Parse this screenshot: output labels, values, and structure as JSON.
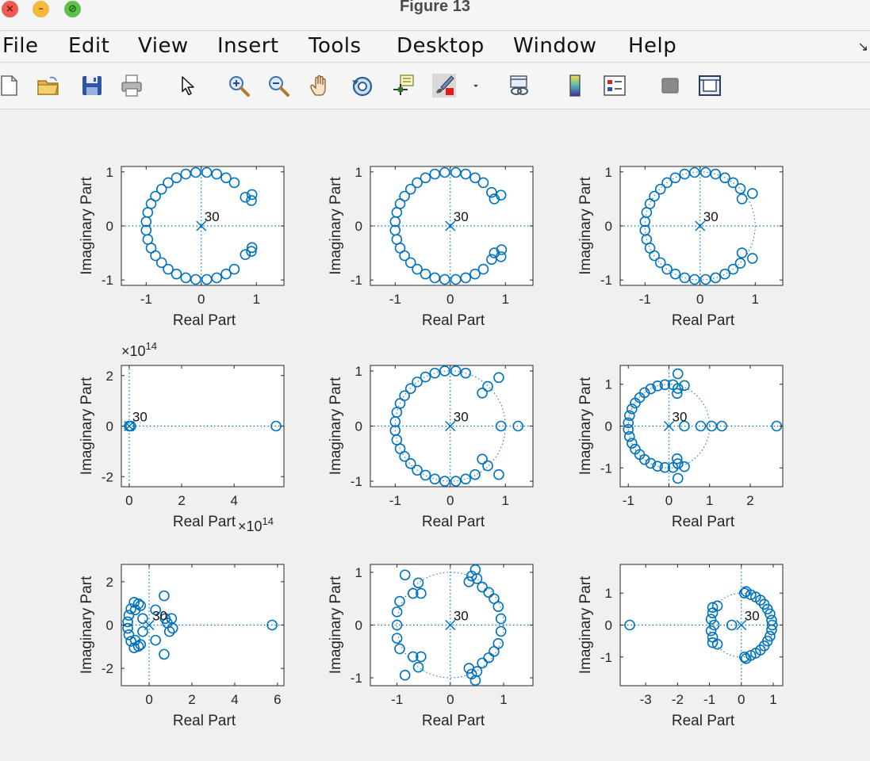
{
  "window": {
    "title": "Figure 13",
    "close_glyph": "×",
    "minimize_glyph": "–",
    "zoom_glyph": "⊘"
  },
  "menubar": {
    "items": [
      "File",
      "Edit",
      "View",
      "Insert",
      "Tools",
      "Desktop",
      "Window",
      "Help"
    ],
    "overflow_glyph": "↘"
  },
  "toolbar": {
    "buttons": [
      "new-figure",
      "open-file",
      "save",
      "print",
      "edit-plot-arrow",
      "zoom-in",
      "zoom-out",
      "pan",
      "rotate-3d",
      "data-cursor",
      "brush",
      "brush-dropdown",
      "link-plot",
      "insert-colorbar",
      "insert-legend",
      "hide-plot-tools",
      "show-plot-tools"
    ]
  },
  "colors": {
    "marker": "#0072bd",
    "axes": "#262626",
    "text": "#262626"
  },
  "chart_data": [
    {
      "type": "scatter",
      "xlabel": "Real Part",
      "ylabel": "Imaginary Part",
      "xlim": [
        -1.45,
        1.5
      ],
      "ylim": [
        -1.1,
        1.1
      ],
      "xticks": [
        -1,
        0,
        1
      ],
      "yticks": [
        -1,
        0,
        1
      ],
      "xtick_labels": [
        "-1",
        "0",
        "1"
      ],
      "ytick_labels": [
        "-1",
        "0",
        "1"
      ],
      "pole": [
        0,
        0
      ],
      "pole_label": "30",
      "unit_circle": false,
      "zeros": [
        [
          -0.1,
          0.99
        ],
        [
          0.1,
          0.99
        ],
        [
          -0.28,
          0.96
        ],
        [
          0.28,
          0.96
        ],
        [
          -0.45,
          0.89
        ],
        [
          0.45,
          0.89
        ],
        [
          -0.6,
          0.8
        ],
        [
          0.6,
          0.8
        ],
        [
          -0.72,
          0.68
        ],
        [
          -0.83,
          0.55
        ],
        [
          -0.91,
          0.41
        ],
        [
          -0.97,
          0.25
        ],
        [
          -1.0,
          0.08
        ],
        [
          -0.1,
          -0.99
        ],
        [
          0.1,
          -0.99
        ],
        [
          -0.28,
          -0.96
        ],
        [
          0.28,
          -0.96
        ],
        [
          -0.45,
          -0.89
        ],
        [
          0.45,
          -0.89
        ],
        [
          -0.6,
          -0.8
        ],
        [
          0.6,
          -0.8
        ],
        [
          -0.72,
          -0.68
        ],
        [
          -0.83,
          -0.55
        ],
        [
          -0.91,
          -0.41
        ],
        [
          -0.97,
          -0.25
        ],
        [
          -1.0,
          -0.08
        ],
        [
          0.8,
          0.53
        ],
        [
          0.91,
          0.47
        ],
        [
          0.92,
          0.58
        ],
        [
          0.8,
          -0.53
        ],
        [
          0.91,
          -0.47
        ],
        [
          0.92,
          -0.4
        ]
      ]
    },
    {
      "type": "scatter",
      "xlabel": "Real Part",
      "ylabel": "Imaginary Part",
      "xlim": [
        -1.45,
        1.5
      ],
      "ylim": [
        -1.1,
        1.1
      ],
      "xticks": [
        -1,
        0,
        1
      ],
      "yticks": [
        -1,
        0,
        1
      ],
      "xtick_labels": [
        "-1",
        "0",
        "1"
      ],
      "ytick_labels": [
        "-1",
        "0",
        "1"
      ],
      "pole": [
        0,
        0
      ],
      "pole_label": "30",
      "unit_circle": false,
      "zeros": [
        [
          -0.1,
          0.99
        ],
        [
          0.1,
          0.99
        ],
        [
          -0.28,
          0.96
        ],
        [
          0.28,
          0.96
        ],
        [
          -0.45,
          0.89
        ],
        [
          0.45,
          0.89
        ],
        [
          -0.6,
          0.8
        ],
        [
          0.6,
          0.8
        ],
        [
          -0.72,
          0.68
        ],
        [
          -0.83,
          0.55
        ],
        [
          -0.91,
          0.41
        ],
        [
          -0.97,
          0.25
        ],
        [
          -1.0,
          0.08
        ],
        [
          -0.1,
          -0.99
        ],
        [
          0.1,
          -0.99
        ],
        [
          -0.28,
          -0.96
        ],
        [
          0.28,
          -0.96
        ],
        [
          -0.45,
          -0.89
        ],
        [
          0.45,
          -0.89
        ],
        [
          -0.6,
          -0.8
        ],
        [
          0.6,
          -0.8
        ],
        [
          -0.72,
          -0.68
        ],
        [
          -0.83,
          -0.55
        ],
        [
          -0.91,
          -0.41
        ],
        [
          -0.97,
          -0.25
        ],
        [
          -1.0,
          -0.08
        ],
        [
          0.75,
          0.62
        ],
        [
          0.8,
          0.5
        ],
        [
          0.92,
          0.57
        ],
        [
          0.75,
          -0.62
        ],
        [
          0.8,
          -0.5
        ],
        [
          0.92,
          -0.57
        ],
        [
          0.93,
          -0.44
        ]
      ]
    },
    {
      "type": "scatter",
      "xlabel": "Real Part",
      "ylabel": "Imaginary Part",
      "xlim": [
        -1.45,
        1.5
      ],
      "ylim": [
        -1.1,
        1.1
      ],
      "xticks": [
        -1,
        0,
        1
      ],
      "yticks": [
        -1,
        0,
        1
      ],
      "xtick_labels": [
        "-1",
        "0",
        "1"
      ],
      "ytick_labels": [
        "-1",
        "0",
        "1"
      ],
      "pole": [
        0,
        0
      ],
      "pole_label": "30",
      "unit_circle": true,
      "zeros": [
        [
          -0.1,
          0.99
        ],
        [
          0.1,
          0.99
        ],
        [
          -0.28,
          0.96
        ],
        [
          0.28,
          0.96
        ],
        [
          -0.45,
          0.89
        ],
        [
          0.45,
          0.89
        ],
        [
          -0.6,
          0.8
        ],
        [
          0.6,
          0.8
        ],
        [
          -0.72,
          0.68
        ],
        [
          -0.83,
          0.55
        ],
        [
          -0.91,
          0.41
        ],
        [
          -0.97,
          0.25
        ],
        [
          -1.0,
          0.08
        ],
        [
          -0.1,
          -0.99
        ],
        [
          0.1,
          -0.99
        ],
        [
          -0.28,
          -0.96
        ],
        [
          0.28,
          -0.96
        ],
        [
          -0.45,
          -0.89
        ],
        [
          0.45,
          -0.89
        ],
        [
          -0.6,
          -0.8
        ],
        [
          0.6,
          -0.8
        ],
        [
          -0.72,
          -0.68
        ],
        [
          -0.83,
          -0.55
        ],
        [
          -0.91,
          -0.41
        ],
        [
          -0.97,
          -0.25
        ],
        [
          -1.0,
          -0.08
        ],
        [
          0.73,
          0.69
        ],
        [
          0.76,
          0.5
        ],
        [
          0.95,
          0.6
        ],
        [
          0.73,
          -0.69
        ],
        [
          0.76,
          -0.5
        ],
        [
          0.95,
          -0.6
        ]
      ]
    },
    {
      "type": "scatter",
      "xlabel": "Real Part",
      "ylabel": "Imaginary Part",
      "xlim": [
        -0.3,
        5.9
      ],
      "ylim": [
        -2.4,
        2.4
      ],
      "xticks": [
        0,
        2,
        4
      ],
      "yticks": [
        -2,
        0,
        2
      ],
      "xtick_labels": [
        "0",
        "2",
        "4"
      ],
      "ytick_labels": [
        "-2",
        "0",
        "2"
      ],
      "x_exponent": "14",
      "y_exponent": "14",
      "pole": [
        0,
        0
      ],
      "pole_label": "30",
      "unit_circle": false,
      "zeros": [
        [
          0.0,
          0.0
        ],
        [
          0.06,
          0.0
        ],
        [
          5.6,
          0.0
        ]
      ]
    },
    {
      "type": "scatter",
      "xlabel": "Real Part",
      "ylabel": "Imaginary Part",
      "xlim": [
        -1.45,
        1.5
      ],
      "ylim": [
        -1.1,
        1.1
      ],
      "xticks": [
        -1,
        0,
        1
      ],
      "yticks": [
        -1,
        0,
        1
      ],
      "xtick_labels": [
        "-1",
        "0",
        "1"
      ],
      "ytick_labels": [
        "-1",
        "0",
        "1"
      ],
      "pole": [
        0,
        0
      ],
      "pole_label": "30",
      "unit_circle": true,
      "zeros": [
        [
          -0.1,
          1.0
        ],
        [
          0.1,
          1.0
        ],
        [
          -0.28,
          0.96
        ],
        [
          0.28,
          0.96
        ],
        [
          -0.45,
          0.89
        ],
        [
          -0.6,
          0.8
        ],
        [
          -0.72,
          0.68
        ],
        [
          -0.83,
          0.55
        ],
        [
          -0.91,
          0.41
        ],
        [
          -0.97,
          0.25
        ],
        [
          -1.0,
          0.08
        ],
        [
          -0.1,
          -1.0
        ],
        [
          0.1,
          -1.0
        ],
        [
          -0.28,
          -0.96
        ],
        [
          0.28,
          -0.96
        ],
        [
          -0.45,
          -0.89
        ],
        [
          -0.6,
          -0.8
        ],
        [
          -0.72,
          -0.68
        ],
        [
          -0.83,
          -0.55
        ],
        [
          -0.91,
          -0.41
        ],
        [
          -0.97,
          -0.25
        ],
        [
          -1.0,
          -0.08
        ],
        [
          0.58,
          0.6
        ],
        [
          0.68,
          0.72
        ],
        [
          0.88,
          0.88
        ],
        [
          0.92,
          0.0
        ],
        [
          1.23,
          0.0
        ],
        [
          0.58,
          -0.6
        ],
        [
          0.68,
          -0.72
        ],
        [
          0.88,
          -0.88
        ],
        [
          0.45,
          -0.88
        ]
      ]
    },
    {
      "type": "scatter",
      "xlabel": "Real Part",
      "ylabel": "Imaginary Part",
      "xlim": [
        -1.2,
        2.8
      ],
      "ylim": [
        -1.45,
        1.45
      ],
      "xticks": [
        -1,
        0,
        1,
        2
      ],
      "yticks": [
        -1,
        0,
        1
      ],
      "xtick_labels": [
        "-1",
        "0",
        "1",
        "2"
      ],
      "ytick_labels": [
        "-1",
        "0",
        "1"
      ],
      "pole": [
        0,
        0
      ],
      "pole_label": "30",
      "unit_circle": true,
      "zeros": [
        [
          -0.1,
          0.99
        ],
        [
          -0.28,
          0.96
        ],
        [
          -0.45,
          0.89
        ],
        [
          -0.6,
          0.8
        ],
        [
          -0.72,
          0.68
        ],
        [
          -0.83,
          0.55
        ],
        [
          -0.91,
          0.41
        ],
        [
          -0.97,
          0.25
        ],
        [
          -1.0,
          0.08
        ],
        [
          -0.1,
          -0.99
        ],
        [
          -0.28,
          -0.96
        ],
        [
          -0.45,
          -0.89
        ],
        [
          -0.6,
          -0.8
        ],
        [
          -0.72,
          -0.68
        ],
        [
          -0.83,
          -0.55
        ],
        [
          -0.91,
          -0.41
        ],
        [
          -0.97,
          -0.25
        ],
        [
          -1.0,
          -0.08
        ],
        [
          0.1,
          0.99
        ],
        [
          0.1,
          -0.99
        ],
        [
          0.22,
          1.25
        ],
        [
          0.22,
          0.9
        ],
        [
          0.38,
          0.97
        ],
        [
          0.22,
          -1.25
        ],
        [
          0.22,
          -0.9
        ],
        [
          0.38,
          -0.97
        ],
        [
          0.2,
          0.78
        ],
        [
          0.2,
          -0.78
        ],
        [
          0.38,
          0.0
        ],
        [
          0.78,
          0.0
        ],
        [
          1.05,
          0.0
        ],
        [
          1.3,
          0.0
        ],
        [
          2.65,
          0.0
        ]
      ]
    },
    {
      "type": "scatter",
      "xlabel": "Real Part",
      "ylabel": "Imaginary Part",
      "xlim": [
        -1.3,
        6.3
      ],
      "ylim": [
        -2.8,
        2.8
      ],
      "xticks": [
        0,
        2,
        4,
        6
      ],
      "yticks": [
        -2,
        0,
        2
      ],
      "xtick_labels": [
        "0",
        "2",
        "4",
        "6"
      ],
      "ytick_labels": [
        "-2",
        "0",
        "2"
      ],
      "pole": [
        0,
        0
      ],
      "pole_label": "30",
      "unit_circle": false,
      "zeros": [
        [
          -0.7,
          1.05
        ],
        [
          -0.5,
          0.98
        ],
        [
          -0.85,
          0.75
        ],
        [
          -0.95,
          0.45
        ],
        [
          -1.0,
          0.15
        ],
        [
          -0.7,
          -1.05
        ],
        [
          -0.5,
          -0.98
        ],
        [
          -0.85,
          -0.75
        ],
        [
          -0.95,
          -0.45
        ],
        [
          -1.0,
          -0.15
        ],
        [
          -0.65,
          0.7
        ],
        [
          -0.4,
          0.9
        ],
        [
          -0.65,
          -0.7
        ],
        [
          -0.4,
          -0.9
        ],
        [
          -0.3,
          0.3
        ],
        [
          -0.3,
          -0.3
        ],
        [
          0.7,
          1.35
        ],
        [
          0.3,
          0.7
        ],
        [
          0.7,
          -1.35
        ],
        [
          0.3,
          -0.7
        ],
        [
          0.85,
          0.1
        ],
        [
          0.95,
          -0.3
        ],
        [
          1.05,
          0.3
        ],
        [
          0.75,
          0.3
        ],
        [
          1.1,
          -0.15
        ],
        [
          5.75,
          0.0
        ]
      ]
    },
    {
      "type": "scatter",
      "xlabel": "Real Part",
      "ylabel": "Imaginary Part",
      "xlim": [
        -1.5,
        1.55
      ],
      "ylim": [
        -1.15,
        1.15
      ],
      "xticks": [
        -1,
        0,
        1
      ],
      "yticks": [
        -1,
        0,
        1
      ],
      "xtick_labels": [
        "-1",
        "0",
        "1"
      ],
      "ytick_labels": [
        "-1",
        "0",
        "1"
      ],
      "pole": [
        0,
        0
      ],
      "pole_label": "30",
      "unit_circle": true,
      "zeros": [
        [
          -0.85,
          0.95
        ],
        [
          -0.85,
          -0.95
        ],
        [
          -0.95,
          0.45
        ],
        [
          -1.0,
          0.25
        ],
        [
          -1.0,
          0.0
        ],
        [
          -0.95,
          -0.45
        ],
        [
          -1.0,
          -0.25
        ],
        [
          -0.6,
          0.8
        ],
        [
          -0.7,
          0.6
        ],
        [
          -0.55,
          0.6
        ],
        [
          -0.6,
          -0.8
        ],
        [
          -0.7,
          -0.6
        ],
        [
          -0.55,
          -0.6
        ],
        [
          0.35,
          0.82
        ],
        [
          0.4,
          0.93
        ],
        [
          0.47,
          1.05
        ],
        [
          0.5,
          0.88
        ],
        [
          0.35,
          -0.82
        ],
        [
          0.4,
          -0.93
        ],
        [
          0.47,
          -1.05
        ],
        [
          0.5,
          -0.88
        ],
        [
          0.6,
          0.72
        ],
        [
          0.72,
          0.62
        ],
        [
          0.82,
          0.5
        ],
        [
          0.9,
          0.35
        ],
        [
          0.95,
          0.12
        ],
        [
          0.6,
          -0.72
        ],
        [
          0.72,
          -0.62
        ],
        [
          0.82,
          -0.5
        ],
        [
          0.9,
          -0.35
        ],
        [
          0.95,
          -0.12
        ]
      ]
    },
    {
      "type": "scatter",
      "xlabel": "Real Part",
      "ylabel": "Imaginary Part",
      "xlim": [
        -3.8,
        1.3
      ],
      "ylim": [
        -1.9,
        1.9
      ],
      "xticks": [
        -3,
        -2,
        -1,
        0,
        1
      ],
      "yticks": [
        -1,
        0,
        1
      ],
      "xtick_labels": [
        "-3",
        "-2",
        "-1",
        "0",
        "1"
      ],
      "ytick_labels": [
        "-1",
        "0",
        "1"
      ],
      "pole": [
        0,
        0
      ],
      "pole_label": "30",
      "unit_circle": true,
      "zeros": [
        [
          0.1,
          1.0
        ],
        [
          0.15,
          1.05
        ],
        [
          0.3,
          0.95
        ],
        [
          0.45,
          0.88
        ],
        [
          0.6,
          0.78
        ],
        [
          0.72,
          0.65
        ],
        [
          0.82,
          0.5
        ],
        [
          0.9,
          0.35
        ],
        [
          0.95,
          0.15
        ],
        [
          0.97,
          0.0
        ],
        [
          0.1,
          -1.0
        ],
        [
          0.15,
          -1.05
        ],
        [
          0.3,
          -0.95
        ],
        [
          0.45,
          -0.88
        ],
        [
          0.6,
          -0.78
        ],
        [
          0.72,
          -0.65
        ],
        [
          0.82,
          -0.5
        ],
        [
          0.9,
          -0.35
        ],
        [
          0.95,
          -0.15
        ],
        [
          -0.9,
          0.55
        ],
        [
          -0.75,
          0.6
        ],
        [
          -0.9,
          0.38
        ],
        [
          -0.95,
          0.18
        ],
        [
          -0.9,
          -0.55
        ],
        [
          -0.75,
          -0.6
        ],
        [
          -0.9,
          -0.38
        ],
        [
          -0.95,
          -0.18
        ],
        [
          -0.85,
          0.0
        ],
        [
          -0.3,
          0.0
        ],
        [
          -3.5,
          0.0
        ]
      ]
    }
  ]
}
